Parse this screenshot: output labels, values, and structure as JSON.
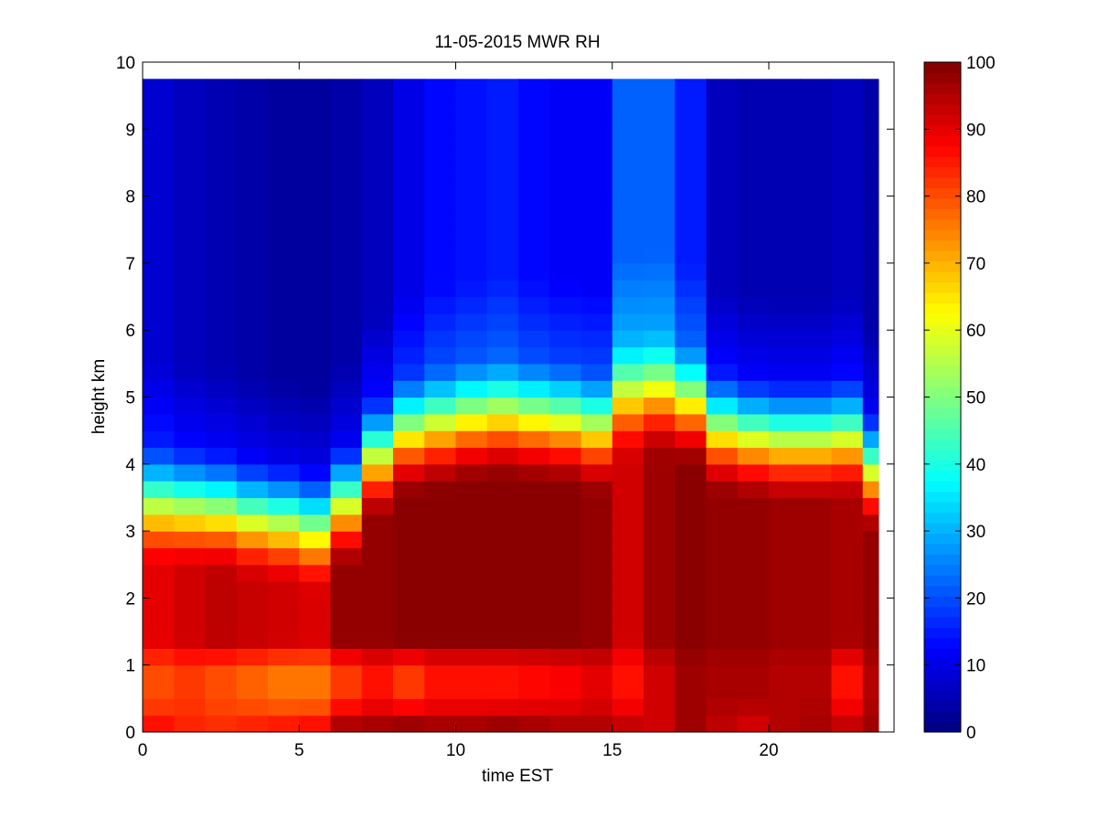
{
  "chart_data": {
    "type": "heatmap",
    "title": "11-05-2015 MWR RH",
    "xlabel": "time EST",
    "ylabel": "height km",
    "xlim": [
      0,
      24
    ],
    "ylim": [
      0,
      10
    ],
    "xticks": [
      0,
      5,
      10,
      15,
      20
    ],
    "yticks": [
      0,
      1,
      2,
      3,
      4,
      5,
      6,
      7,
      8,
      9,
      10
    ],
    "colorbar": {
      "label": "",
      "range": [
        0,
        100
      ],
      "ticks": [
        0,
        10,
        20,
        30,
        40,
        50,
        60,
        70,
        80,
        90,
        100
      ],
      "colormap": "jet"
    },
    "grid": false,
    "x_bin_width_hours": 1,
    "x_bin_starts": [
      0,
      1,
      2,
      3,
      4,
      5,
      6,
      7,
      8,
      9,
      10,
      11,
      12,
      13,
      14,
      15,
      16,
      17,
      18,
      19,
      20,
      21,
      22,
      23
    ],
    "profile_top_km": 9.75,
    "columns_note_omitted": "",
    "profiles": [
      {
        "t": 0,
        "surf": 86,
        "low": 80,
        "mid": 90,
        "cloud_top": 2.9,
        "upper": 8
      },
      {
        "t": 1,
        "surf": 84,
        "low": 82,
        "mid": 92,
        "cloud_top": 2.85,
        "upper": 6
      },
      {
        "t": 2,
        "surf": 83,
        "low": 80,
        "mid": 94,
        "cloud_top": 2.8,
        "upper": 5
      },
      {
        "t": 3,
        "surf": 84,
        "low": 78,
        "mid": 93,
        "cloud_top": 2.7,
        "upper": 4
      },
      {
        "t": 4,
        "surf": 85,
        "low": 76,
        "mid": 92,
        "cloud_top": 2.65,
        "upper": 3
      },
      {
        "t": 5,
        "surf": 86,
        "low": 76,
        "mid": 91,
        "cloud_top": 2.55,
        "upper": 3
      },
      {
        "t": 6,
        "surf": 95,
        "low": 82,
        "mid": 98,
        "cloud_top": 2.9,
        "upper": 4
      },
      {
        "t": 7,
        "surf": 96,
        "low": 86,
        "mid": 98,
        "cloud_top": 3.6,
        "upper": 6
      },
      {
        "t": 8,
        "surf": 97,
        "low": 82,
        "mid": 99,
        "cloud_top": 3.95,
        "upper": 10
      },
      {
        "t": 9,
        "surf": 96,
        "low": 86,
        "mid": 99,
        "cloud_top": 4.05,
        "upper": 13
      },
      {
        "t": 10,
        "surf": 96,
        "low": 86,
        "mid": 99,
        "cloud_top": 4.15,
        "upper": 14
      },
      {
        "t": 11,
        "surf": 97,
        "low": 86,
        "mid": 99,
        "cloud_top": 4.2,
        "upper": 15
      },
      {
        "t": 12,
        "surf": 96,
        "low": 87,
        "mid": 99,
        "cloud_top": 4.15,
        "upper": 13
      },
      {
        "t": 13,
        "surf": 95,
        "low": 88,
        "mid": 99,
        "cloud_top": 4.1,
        "upper": 12
      },
      {
        "t": 14,
        "surf": 95,
        "low": 90,
        "mid": 98,
        "cloud_top": 4.0,
        "upper": 12
      },
      {
        "t": 15,
        "surf": 93,
        "low": 86,
        "mid": 92,
        "cloud_top": 4.5,
        "upper": 22
      },
      {
        "t": 16,
        "surf": 92,
        "low": 92,
        "mid": 97,
        "cloud_top": 4.55,
        "upper": 22
      },
      {
        "t": 17,
        "surf": 97,
        "low": 97,
        "mid": 99,
        "cloud_top": 4.4,
        "upper": 15
      },
      {
        "t": 18,
        "surf": 94,
        "low": 96,
        "mid": 98,
        "cloud_top": 4.0,
        "upper": 6
      },
      {
        "t": 19,
        "surf": 92,
        "low": 96,
        "mid": 98,
        "cloud_top": 3.9,
        "upper": 5
      },
      {
        "t": 20,
        "surf": 95,
        "low": 95,
        "mid": 97,
        "cloud_top": 3.85,
        "upper": 5
      },
      {
        "t": 21,
        "surf": 96,
        "low": 95,
        "mid": 97,
        "cloud_top": 3.85,
        "upper": 5
      },
      {
        "t": 22,
        "surf": 93,
        "low": 86,
        "mid": 96,
        "cloud_top": 3.9,
        "upper": 6
      },
      {
        "t": 23,
        "surf": 97,
        "low": 95,
        "mid": 98,
        "cloud_top": 3.4,
        "upper": 4
      }
    ]
  }
}
